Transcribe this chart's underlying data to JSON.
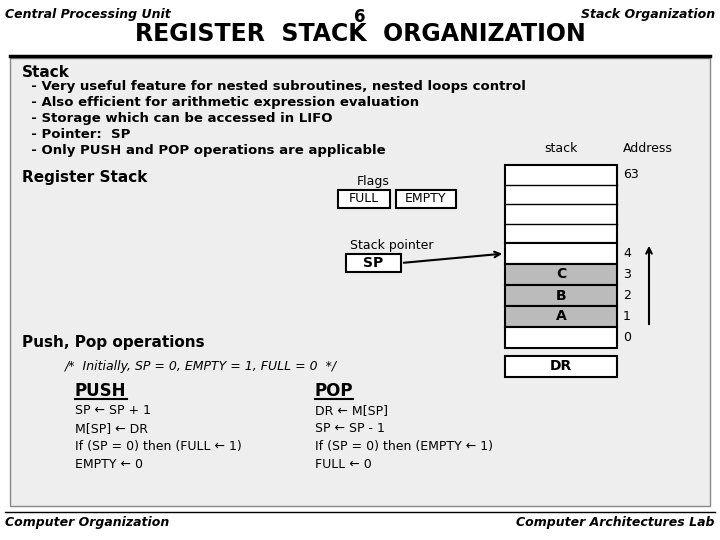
{
  "title": "REGISTER  STACK  ORGANIZATION",
  "header_left": "Central Processing Unit",
  "header_center": "6",
  "header_right": "Stack Organization",
  "footer_left": "Computer Organization",
  "footer_right": "Computer Architectures Lab",
  "bg_color": "#ffffff",
  "text_color": "#000000",
  "stack_bullets": [
    "Stack",
    "  - Very useful feature for nested subroutines, nested loops control",
    "  - Also efficient for arithmetic expression evaluation",
    "  - Storage which can be accessed in LIFO",
    "  - Pointer:  SP",
    "  - Only PUSH and POP operations are applicable"
  ],
  "register_stack_label": "Register Stack",
  "flags_label": "Flags",
  "full_label": "FULL",
  "empty_label": "EMPTY",
  "sp_label": "Stack pointer",
  "sp_box": "SP",
  "stack_label": "stack",
  "address_label": "Address",
  "addr_63": "63",
  "addr_4": "4",
  "addr_3": "3",
  "addr_2": "2",
  "addr_1": "1",
  "addr_0": "0",
  "cell_C": "C",
  "cell_B": "B",
  "cell_A": "A",
  "dr_label": "DR",
  "push_pop_label": "Push, Pop operations",
  "comment_line": "/*  Initially, SP = 0, EMPTY = 1, FULL = 0  */",
  "push_title": "PUSH",
  "pop_title": "POP",
  "push_lines": [
    "SP ← SP + 1",
    "M[SP] ← DR",
    "If (SP = 0) then (FULL ← 1)",
    "EMPTY ← 0"
  ],
  "pop_lines": [
    "DR ← M[SP]",
    "SP ← SP - 1",
    "If (SP = 0) then (EMPTY ← 1)",
    "FULL ← 0"
  ]
}
